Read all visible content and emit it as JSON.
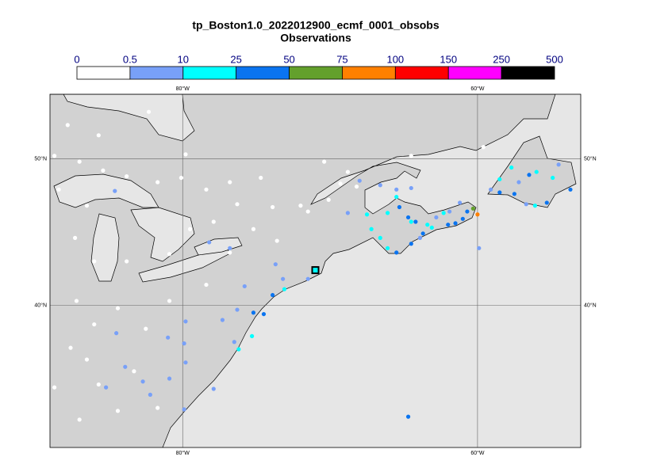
{
  "header": {
    "title": "tp_Boston1.0_2022012900_ecmf_0001_obsobs",
    "subtitle": "Observations"
  },
  "colorbar": {
    "bounds": [
      0,
      0.5,
      10,
      25,
      50,
      75,
      100,
      150,
      250,
      500
    ],
    "colors": [
      "#ffffff",
      "#78a0f8",
      "#00ffff",
      "#0a74f0",
      "#63a02c",
      "#ff8000",
      "#ff0000",
      "#ff00ff",
      "#000000"
    ]
  },
  "map": {
    "lon_range": [
      -89,
      -53
    ],
    "lat_range": [
      30.3,
      54.4
    ],
    "lon_ticks": [
      {
        "value": -80,
        "label": "80°W"
      },
      {
        "value": -60,
        "label": "60°W"
      }
    ],
    "lat_ticks": [
      {
        "value": 50,
        "label": "50°N"
      },
      {
        "value": 40,
        "label": "40°N"
      }
    ],
    "site": {
      "lon": -71.0,
      "lat": 42.4,
      "value": 15
    },
    "observations": [
      {
        "lon": -87.8,
        "lat": 52.3,
        "value": 0
      },
      {
        "lon": -85.7,
        "lat": 51.6,
        "value": 0
      },
      {
        "lon": -82.3,
        "lat": 53.2,
        "value": 0
      },
      {
        "lon": -88.7,
        "lat": 50.2,
        "value": 0
      },
      {
        "lon": -87.0,
        "lat": 49.8,
        "value": 0
      },
      {
        "lon": -85.4,
        "lat": 49.2,
        "value": 0
      },
      {
        "lon": -83.8,
        "lat": 48.8,
        "value": 0
      },
      {
        "lon": -81.7,
        "lat": 48.4,
        "value": 0
      },
      {
        "lon": -80.1,
        "lat": 48.7,
        "value": 0
      },
      {
        "lon": -78.4,
        "lat": 47.9,
        "value": 0
      },
      {
        "lon": -76.3,
        "lat": 46.9,
        "value": 0
      },
      {
        "lon": -73.9,
        "lat": 46.7,
        "value": 0
      },
      {
        "lon": -72.0,
        "lat": 46.8,
        "value": 0
      },
      {
        "lon": -74.7,
        "lat": 48.7,
        "value": 0
      },
      {
        "lon": -76.8,
        "lat": 48.4,
        "value": 0
      },
      {
        "lon": -88.4,
        "lat": 47.9,
        "value": 0
      },
      {
        "lon": -86.5,
        "lat": 46.8,
        "value": 0
      },
      {
        "lon": -87.3,
        "lat": 44.6,
        "value": 0
      },
      {
        "lon": -86.0,
        "lat": 43.0,
        "value": 0
      },
      {
        "lon": -83.8,
        "lat": 43.0,
        "value": 0
      },
      {
        "lon": -80.9,
        "lat": 43.5,
        "value": 0
      },
      {
        "lon": -79.5,
        "lat": 45.2,
        "value": 0
      },
      {
        "lon": -77.9,
        "lat": 45.7,
        "value": 0
      },
      {
        "lon": -75.2,
        "lat": 45.2,
        "value": 0
      },
      {
        "lon": -73.6,
        "lat": 44.4,
        "value": 0
      },
      {
        "lon": -71.5,
        "lat": 46.4,
        "value": 0
      },
      {
        "lon": -70.1,
        "lat": 47.2,
        "value": 0
      },
      {
        "lon": -68.2,
        "lat": 48.1,
        "value": 0
      },
      {
        "lon": -87.2,
        "lat": 40.3,
        "value": 0
      },
      {
        "lon": -86.0,
        "lat": 38.7,
        "value": 0
      },
      {
        "lon": -84.4,
        "lat": 39.8,
        "value": 0
      },
      {
        "lon": -82.5,
        "lat": 38.4,
        "value": 0
      },
      {
        "lon": -86.5,
        "lat": 36.3,
        "value": 0
      },
      {
        "lon": -88.7,
        "lat": 34.4,
        "value": 0
      },
      {
        "lon": -87.0,
        "lat": 32.2,
        "value": 0
      },
      {
        "lon": -84.4,
        "lat": 32.8,
        "value": 0
      },
      {
        "lon": -81.7,
        "lat": 33.0,
        "value": 0
      },
      {
        "lon": -85.7,
        "lat": 34.6,
        "value": 0
      },
      {
        "lon": -83.3,
        "lat": 35.5,
        "value": 0
      },
      {
        "lon": -87.6,
        "lat": 37.1,
        "value": 0
      },
      {
        "lon": -70.4,
        "lat": 49.8,
        "value": 0
      },
      {
        "lon": -69.3,
        "lat": 48.3,
        "value": 0
      },
      {
        "lon": -68.8,
        "lat": 49.1,
        "value": 0
      },
      {
        "lon": -64.5,
        "lat": 50.2,
        "value": 0
      },
      {
        "lon": -59.6,
        "lat": 50.8,
        "value": 0
      },
      {
        "lon": -79.8,
        "lat": 50.3,
        "value": 0
      },
      {
        "lon": -78.4,
        "lat": 41.4,
        "value": 0
      },
      {
        "lon": -76.8,
        "lat": 43.6,
        "value": 0
      },
      {
        "lon": -80.9,
        "lat": 40.3,
        "value": 0
      },
      {
        "lon": -84.6,
        "lat": 47.8,
        "value": 2
      },
      {
        "lon": -79.8,
        "lat": 38.9,
        "value": 2
      },
      {
        "lon": -81.0,
        "lat": 37.8,
        "value": 2
      },
      {
        "lon": -79.9,
        "lat": 37.4,
        "value": 2
      },
      {
        "lon": -79.8,
        "lat": 36.1,
        "value": 2
      },
      {
        "lon": -80.9,
        "lat": 35.0,
        "value": 2
      },
      {
        "lon": -79.9,
        "lat": 32.9,
        "value": 2
      },
      {
        "lon": -84.5,
        "lat": 38.1,
        "value": 2
      },
      {
        "lon": -83.9,
        "lat": 35.8,
        "value": 2
      },
      {
        "lon": -85.2,
        "lat": 34.4,
        "value": 2
      },
      {
        "lon": -82.7,
        "lat": 34.8,
        "value": 2
      },
      {
        "lon": -82.2,
        "lat": 33.9,
        "value": 2
      },
      {
        "lon": -78.2,
        "lat": 44.3,
        "value": 2
      },
      {
        "lon": -76.8,
        "lat": 43.9,
        "value": 2
      },
      {
        "lon": -76.3,
        "lat": 39.7,
        "value": 2
      },
      {
        "lon": -75.8,
        "lat": 41.3,
        "value": 2
      },
      {
        "lon": -73.7,
        "lat": 42.8,
        "value": 2
      },
      {
        "lon": -73.2,
        "lat": 41.8,
        "value": 2
      },
      {
        "lon": -71.5,
        "lat": 41.8,
        "value": 2
      },
      {
        "lon": -68.8,
        "lat": 46.3,
        "value": 2
      },
      {
        "lon": -68.0,
        "lat": 48.5,
        "value": 2
      },
      {
        "lon": -66.6,
        "lat": 48.2,
        "value": 2
      },
      {
        "lon": -65.5,
        "lat": 47.9,
        "value": 2
      },
      {
        "lon": -64.5,
        "lat": 48.0,
        "value": 2
      },
      {
        "lon": -62.8,
        "lat": 46.0,
        "value": 2
      },
      {
        "lon": -61.9,
        "lat": 46.4,
        "value": 2
      },
      {
        "lon": -57.2,
        "lat": 48.4,
        "value": 2
      },
      {
        "lon": -59.1,
        "lat": 47.9,
        "value": 2
      },
      {
        "lon": -56.7,
        "lat": 46.9,
        "value": 2
      },
      {
        "lon": -54.5,
        "lat": 49.6,
        "value": 2
      },
      {
        "lon": -77.3,
        "lat": 39.0,
        "value": 2
      },
      {
        "lon": -77.9,
        "lat": 34.3,
        "value": 2
      },
      {
        "lon": -76.5,
        "lat": 37.5,
        "value": 2
      },
      {
        "lon": -63.9,
        "lat": 44.6,
        "value": 2
      },
      {
        "lon": -61.2,
        "lat": 47.0,
        "value": 2
      },
      {
        "lon": -59.9,
        "lat": 43.9,
        "value": 2
      },
      {
        "lon": -67.5,
        "lat": 46.2,
        "value": 15
      },
      {
        "lon": -67.2,
        "lat": 45.2,
        "value": 15
      },
      {
        "lon": -66.6,
        "lat": 44.6,
        "value": 15
      },
      {
        "lon": -66.1,
        "lat": 46.3,
        "value": 15
      },
      {
        "lon": -65.5,
        "lat": 47.4,
        "value": 15
      },
      {
        "lon": -64.5,
        "lat": 45.7,
        "value": 15
      },
      {
        "lon": -63.4,
        "lat": 45.5,
        "value": 15
      },
      {
        "lon": -73.1,
        "lat": 41.1,
        "value": 15
      },
      {
        "lon": -75.3,
        "lat": 37.9,
        "value": 15
      },
      {
        "lon": -76.2,
        "lat": 37.0,
        "value": 15
      },
      {
        "lon": -56.0,
        "lat": 49.1,
        "value": 15
      },
      {
        "lon": -54.9,
        "lat": 48.7,
        "value": 15
      },
      {
        "lon": -56.1,
        "lat": 46.8,
        "value": 15
      },
      {
        "lon": -58.5,
        "lat": 48.6,
        "value": 15
      },
      {
        "lon": -57.7,
        "lat": 49.4,
        "value": 15
      },
      {
        "lon": -62.3,
        "lat": 46.3,
        "value": 15
      },
      {
        "lon": -66.1,
        "lat": 43.9,
        "value": 15
      },
      {
        "lon": -63.1,
        "lat": 45.3,
        "value": 15
      },
      {
        "lon": -75.2,
        "lat": 39.5,
        "value": 30
      },
      {
        "lon": -74.5,
        "lat": 39.4,
        "value": 30
      },
      {
        "lon": -73.9,
        "lat": 40.7,
        "value": 30
      },
      {
        "lon": -65.3,
        "lat": 46.7,
        "value": 30
      },
      {
        "lon": -64.7,
        "lat": 46.0,
        "value": 30
      },
      {
        "lon": -64.2,
        "lat": 45.7,
        "value": 30
      },
      {
        "lon": -63.7,
        "lat": 44.9,
        "value": 30
      },
      {
        "lon": -62.0,
        "lat": 45.5,
        "value": 30
      },
      {
        "lon": -61.5,
        "lat": 45.6,
        "value": 30
      },
      {
        "lon": -61.0,
        "lat": 45.9,
        "value": 30
      },
      {
        "lon": -60.7,
        "lat": 46.4,
        "value": 30
      },
      {
        "lon": -65.5,
        "lat": 43.6,
        "value": 30
      },
      {
        "lon": -64.5,
        "lat": 44.2,
        "value": 30
      },
      {
        "lon": -58.5,
        "lat": 47.7,
        "value": 30
      },
      {
        "lon": -57.5,
        "lat": 47.6,
        "value": 30
      },
      {
        "lon": -55.3,
        "lat": 47.0,
        "value": 30
      },
      {
        "lon": -53.7,
        "lat": 47.9,
        "value": 30
      },
      {
        "lon": -56.5,
        "lat": 48.9,
        "value": 30
      },
      {
        "lon": -64.7,
        "lat": 32.4,
        "value": 30
      },
      {
        "lon": -60.3,
        "lat": 46.6,
        "value": 60
      },
      {
        "lon": -60.0,
        "lat": 46.2,
        "value": 90
      }
    ]
  }
}
